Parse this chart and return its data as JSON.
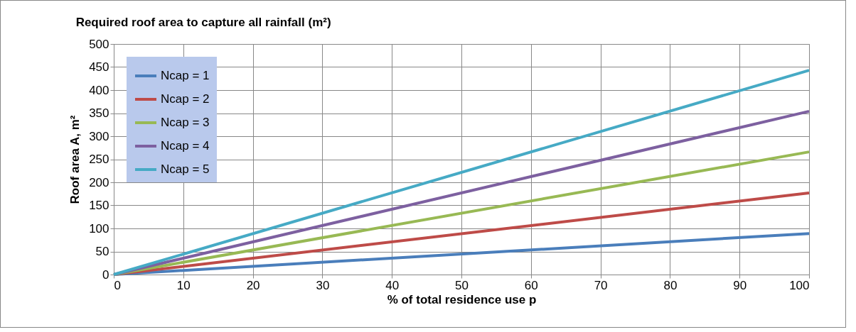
{
  "chart_data": {
    "type": "line",
    "title": "Required roof area to capture all rainfall (m²)",
    "xlabel": "% of total residence use p",
    "ylabel": "Roof area A, m²",
    "x": [
      0,
      100
    ],
    "series": [
      {
        "name": "Ncap = 1",
        "color": "#4a7ebb",
        "values": [
          0,
          89
        ]
      },
      {
        "name": "Ncap = 2",
        "color": "#be4b48",
        "values": [
          0,
          177
        ]
      },
      {
        "name": "Ncap = 3",
        "color": "#98b954",
        "values": [
          0,
          266
        ]
      },
      {
        "name": "Ncap = 4",
        "color": "#7d60a0",
        "values": [
          0,
          354
        ]
      },
      {
        "name": "Ncap = 5",
        "color": "#46aac5",
        "values": [
          0,
          443
        ]
      }
    ],
    "xlim": [
      0,
      100
    ],
    "xticks": [
      0,
      10,
      20,
      30,
      40,
      50,
      60,
      70,
      80,
      90,
      100
    ],
    "ylim": [
      0,
      500
    ],
    "yticks": [
      0,
      50,
      100,
      150,
      200,
      250,
      300,
      350,
      400,
      450,
      500
    ],
    "grid": true,
    "legend": "top left",
    "marker": "none",
    "line_style": "solid"
  }
}
